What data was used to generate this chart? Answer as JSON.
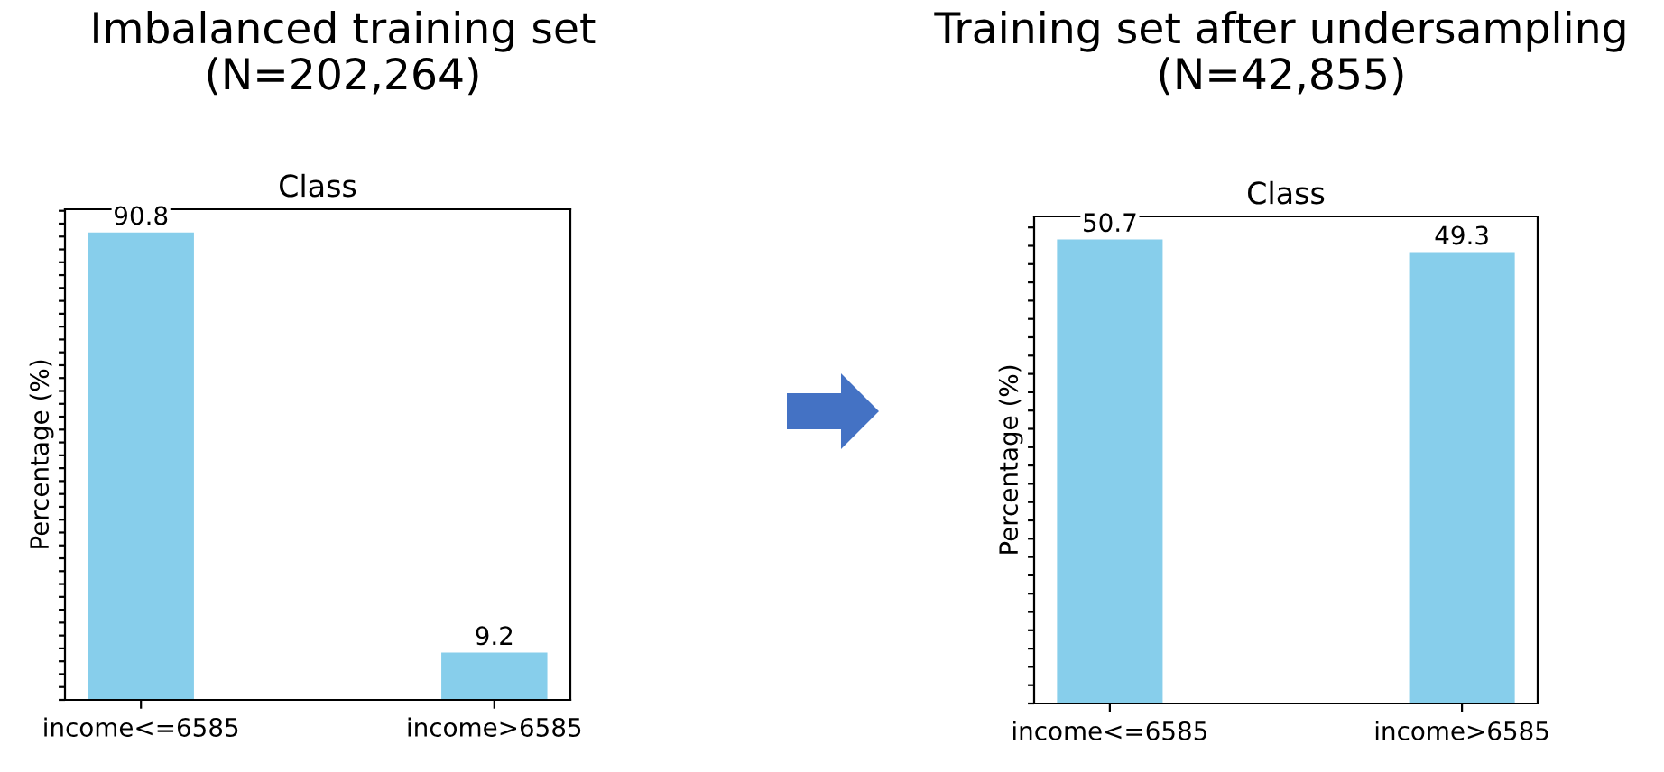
{
  "chart_data": [
    {
      "type": "bar",
      "title": "Imbalanced training set\n(N=202,264)",
      "subtitle": "Class",
      "ylabel": "Percentage (%)",
      "categories": [
        "income<=6585",
        "income>6585"
      ],
      "values": [
        90.8,
        9.2
      ],
      "color": "#87ceeb",
      "data_labels": true,
      "tick_labels": "x",
      "ylim": [
        0,
        95.3
      ],
      "yticks": [
        {
          "value": 0,
          "label": null
        },
        {
          "value": 2.5,
          "label": null
        },
        {
          "value": 5,
          "label": null
        },
        {
          "value": 7.5,
          "label": null
        },
        {
          "value": 10,
          "label": null
        },
        {
          "value": 12.5,
          "label": null
        },
        {
          "value": 15,
          "label": null
        },
        {
          "value": 17.5,
          "label": null
        },
        {
          "value": 20,
          "label": null
        },
        {
          "value": 22.5,
          "label": null
        },
        {
          "value": 25,
          "label": null
        },
        {
          "value": 27.5,
          "label": null
        },
        {
          "value": 30,
          "label": null
        },
        {
          "value": 32.5,
          "label": null
        },
        {
          "value": 35,
          "label": null
        },
        {
          "value": 37.5,
          "label": null
        },
        {
          "value": 40,
          "label": null
        },
        {
          "value": 42.5,
          "label": null
        },
        {
          "value": 45,
          "label": null
        },
        {
          "value": 47.5,
          "label": null
        },
        {
          "value": 50,
          "label": null
        },
        {
          "value": 52.5,
          "label": null
        },
        {
          "value": 55,
          "label": null
        },
        {
          "value": 57.5,
          "label": null
        },
        {
          "value": 60,
          "label": null
        },
        {
          "value": 62.5,
          "label": null
        },
        {
          "value": 65,
          "label": null
        },
        {
          "value": 67.5,
          "label": null
        },
        {
          "value": 70,
          "label": null
        },
        {
          "value": 72.5,
          "label": null
        },
        {
          "value": 75,
          "label": null
        },
        {
          "value": 77.5,
          "label": null
        },
        {
          "value": 80,
          "label": null
        },
        {
          "value": 82.5,
          "label": null
        },
        {
          "value": 85,
          "label": null
        },
        {
          "value": 87.5,
          "label": null
        },
        {
          "value": 90,
          "label": null
        },
        {
          "value": 92.5,
          "label": null
        },
        {
          "value": 95,
          "label": null
        }
      ]
    },
    {
      "type": "bar",
      "title": "Training set after undersampling\n(N=42,855)",
      "subtitle": "Class",
      "ylabel": "Percentage (%)",
      "categories": [
        "income<=6585",
        "income>6585"
      ],
      "values": [
        50.7,
        49.3
      ],
      "color": "#87ceeb",
      "data_labels": true,
      "tick_labels": "x",
      "ylim": [
        0,
        53.2
      ],
      "yticks": [
        {
          "value": 0,
          "label": null
        },
        {
          "value": 2,
          "label": null
        },
        {
          "value": 4,
          "label": null
        },
        {
          "value": 6,
          "label": null
        },
        {
          "value": 8,
          "label": null
        },
        {
          "value": 10,
          "label": null
        },
        {
          "value": 12,
          "label": null
        },
        {
          "value": 14,
          "label": null
        },
        {
          "value": 16,
          "label": null
        },
        {
          "value": 18,
          "label": null
        },
        {
          "value": 20,
          "label": null
        },
        {
          "value": 22,
          "label": null
        },
        {
          "value": 24,
          "label": null
        },
        {
          "value": 26,
          "label": null
        },
        {
          "value": 28,
          "label": null
        },
        {
          "value": 30,
          "label": null
        },
        {
          "value": 32,
          "label": null
        },
        {
          "value": 34,
          "label": null
        },
        {
          "value": 36,
          "label": null
        },
        {
          "value": 38,
          "label": null
        },
        {
          "value": 40,
          "label": null
        },
        {
          "value": 42,
          "label": null
        },
        {
          "value": 44,
          "label": null
        },
        {
          "value": 46,
          "label": null
        },
        {
          "value": 48,
          "label": null
        },
        {
          "value": 50,
          "label": null
        },
        {
          "value": 52,
          "label": null
        }
      ]
    }
  ]
}
